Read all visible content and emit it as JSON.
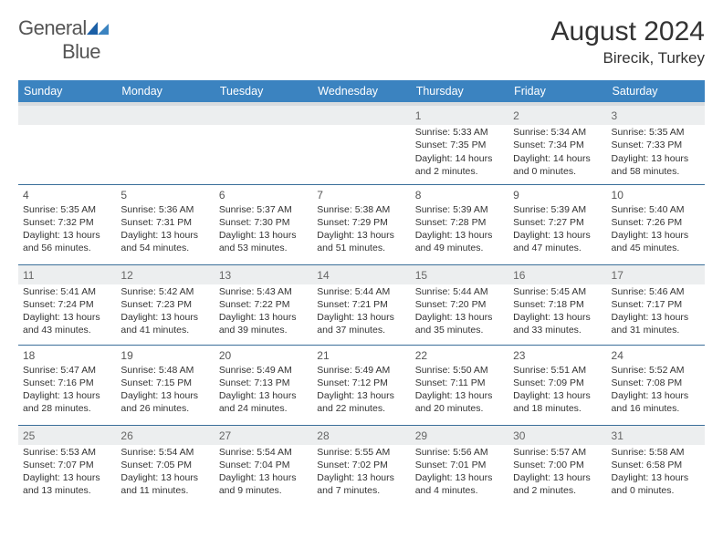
{
  "logo": {
    "text1": "General",
    "text2": "Blue"
  },
  "title": "August 2024",
  "location": "Birecik, Turkey",
  "colors": {
    "header_bg": "#3b83c0",
    "header_text": "#ffffff",
    "divider": "#3b6f9a",
    "shaded_row": "#eceeef",
    "body_text": "#333333"
  },
  "daysOfWeek": [
    "Sunday",
    "Monday",
    "Tuesday",
    "Wednesday",
    "Thursday",
    "Friday",
    "Saturday"
  ],
  "weeks": [
    {
      "shadedDayNum": true,
      "cells": [
        {
          "day": "",
          "lines": []
        },
        {
          "day": "",
          "lines": []
        },
        {
          "day": "",
          "lines": []
        },
        {
          "day": "",
          "lines": []
        },
        {
          "day": "1",
          "lines": [
            "Sunrise: 5:33 AM",
            "Sunset: 7:35 PM",
            "Daylight: 14 hours",
            "and 2 minutes."
          ]
        },
        {
          "day": "2",
          "lines": [
            "Sunrise: 5:34 AM",
            "Sunset: 7:34 PM",
            "Daylight: 14 hours",
            "and 0 minutes."
          ]
        },
        {
          "day": "3",
          "lines": [
            "Sunrise: 5:35 AM",
            "Sunset: 7:33 PM",
            "Daylight: 13 hours",
            "and 58 minutes."
          ]
        }
      ]
    },
    {
      "shadedDayNum": false,
      "cells": [
        {
          "day": "4",
          "lines": [
            "Sunrise: 5:35 AM",
            "Sunset: 7:32 PM",
            "Daylight: 13 hours",
            "and 56 minutes."
          ]
        },
        {
          "day": "5",
          "lines": [
            "Sunrise: 5:36 AM",
            "Sunset: 7:31 PM",
            "Daylight: 13 hours",
            "and 54 minutes."
          ]
        },
        {
          "day": "6",
          "lines": [
            "Sunrise: 5:37 AM",
            "Sunset: 7:30 PM",
            "Daylight: 13 hours",
            "and 53 minutes."
          ]
        },
        {
          "day": "7",
          "lines": [
            "Sunrise: 5:38 AM",
            "Sunset: 7:29 PM",
            "Daylight: 13 hours",
            "and 51 minutes."
          ]
        },
        {
          "day": "8",
          "lines": [
            "Sunrise: 5:39 AM",
            "Sunset: 7:28 PM",
            "Daylight: 13 hours",
            "and 49 minutes."
          ]
        },
        {
          "day": "9",
          "lines": [
            "Sunrise: 5:39 AM",
            "Sunset: 7:27 PM",
            "Daylight: 13 hours",
            "and 47 minutes."
          ]
        },
        {
          "day": "10",
          "lines": [
            "Sunrise: 5:40 AM",
            "Sunset: 7:26 PM",
            "Daylight: 13 hours",
            "and 45 minutes."
          ]
        }
      ]
    },
    {
      "shadedDayNum": true,
      "cells": [
        {
          "day": "11",
          "lines": [
            "Sunrise: 5:41 AM",
            "Sunset: 7:24 PM",
            "Daylight: 13 hours",
            "and 43 minutes."
          ]
        },
        {
          "day": "12",
          "lines": [
            "Sunrise: 5:42 AM",
            "Sunset: 7:23 PM",
            "Daylight: 13 hours",
            "and 41 minutes."
          ]
        },
        {
          "day": "13",
          "lines": [
            "Sunrise: 5:43 AM",
            "Sunset: 7:22 PM",
            "Daylight: 13 hours",
            "and 39 minutes."
          ]
        },
        {
          "day": "14",
          "lines": [
            "Sunrise: 5:44 AM",
            "Sunset: 7:21 PM",
            "Daylight: 13 hours",
            "and 37 minutes."
          ]
        },
        {
          "day": "15",
          "lines": [
            "Sunrise: 5:44 AM",
            "Sunset: 7:20 PM",
            "Daylight: 13 hours",
            "and 35 minutes."
          ]
        },
        {
          "day": "16",
          "lines": [
            "Sunrise: 5:45 AM",
            "Sunset: 7:18 PM",
            "Daylight: 13 hours",
            "and 33 minutes."
          ]
        },
        {
          "day": "17",
          "lines": [
            "Sunrise: 5:46 AM",
            "Sunset: 7:17 PM",
            "Daylight: 13 hours",
            "and 31 minutes."
          ]
        }
      ]
    },
    {
      "shadedDayNum": false,
      "cells": [
        {
          "day": "18",
          "lines": [
            "Sunrise: 5:47 AM",
            "Sunset: 7:16 PM",
            "Daylight: 13 hours",
            "and 28 minutes."
          ]
        },
        {
          "day": "19",
          "lines": [
            "Sunrise: 5:48 AM",
            "Sunset: 7:15 PM",
            "Daylight: 13 hours",
            "and 26 minutes."
          ]
        },
        {
          "day": "20",
          "lines": [
            "Sunrise: 5:49 AM",
            "Sunset: 7:13 PM",
            "Daylight: 13 hours",
            "and 24 minutes."
          ]
        },
        {
          "day": "21",
          "lines": [
            "Sunrise: 5:49 AM",
            "Sunset: 7:12 PM",
            "Daylight: 13 hours",
            "and 22 minutes."
          ]
        },
        {
          "day": "22",
          "lines": [
            "Sunrise: 5:50 AM",
            "Sunset: 7:11 PM",
            "Daylight: 13 hours",
            "and 20 minutes."
          ]
        },
        {
          "day": "23",
          "lines": [
            "Sunrise: 5:51 AM",
            "Sunset: 7:09 PM",
            "Daylight: 13 hours",
            "and 18 minutes."
          ]
        },
        {
          "day": "24",
          "lines": [
            "Sunrise: 5:52 AM",
            "Sunset: 7:08 PM",
            "Daylight: 13 hours",
            "and 16 minutes."
          ]
        }
      ]
    },
    {
      "shadedDayNum": true,
      "cells": [
        {
          "day": "25",
          "lines": [
            "Sunrise: 5:53 AM",
            "Sunset: 7:07 PM",
            "Daylight: 13 hours",
            "and 13 minutes."
          ]
        },
        {
          "day": "26",
          "lines": [
            "Sunrise: 5:54 AM",
            "Sunset: 7:05 PM",
            "Daylight: 13 hours",
            "and 11 minutes."
          ]
        },
        {
          "day": "27",
          "lines": [
            "Sunrise: 5:54 AM",
            "Sunset: 7:04 PM",
            "Daylight: 13 hours",
            "and 9 minutes."
          ]
        },
        {
          "day": "28",
          "lines": [
            "Sunrise: 5:55 AM",
            "Sunset: 7:02 PM",
            "Daylight: 13 hours",
            "and 7 minutes."
          ]
        },
        {
          "day": "29",
          "lines": [
            "Sunrise: 5:56 AM",
            "Sunset: 7:01 PM",
            "Daylight: 13 hours",
            "and 4 minutes."
          ]
        },
        {
          "day": "30",
          "lines": [
            "Sunrise: 5:57 AM",
            "Sunset: 7:00 PM",
            "Daylight: 13 hours",
            "and 2 minutes."
          ]
        },
        {
          "day": "31",
          "lines": [
            "Sunrise: 5:58 AM",
            "Sunset: 6:58 PM",
            "Daylight: 13 hours",
            "and 0 minutes."
          ]
        }
      ]
    }
  ]
}
